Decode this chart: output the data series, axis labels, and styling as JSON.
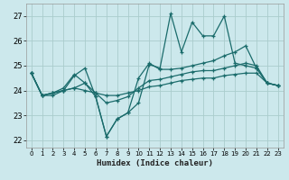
{
  "title": "",
  "xlabel": "Humidex (Indice chaleur)",
  "bg_color": "#cce8ec",
  "grid_color": "#aacccc",
  "line_color": "#1a6b6b",
  "xlim": [
    -0.5,
    23.5
  ],
  "ylim": [
    21.7,
    27.5
  ],
  "yticks": [
    22,
    23,
    24,
    25,
    26,
    27
  ],
  "xticks": [
    0,
    1,
    2,
    3,
    4,
    5,
    6,
    7,
    8,
    9,
    10,
    11,
    12,
    13,
    14,
    15,
    16,
    17,
    18,
    19,
    20,
    21,
    22,
    23
  ],
  "line1_y": [
    24.7,
    23.8,
    23.8,
    24.0,
    24.6,
    24.9,
    23.75,
    22.15,
    22.85,
    23.1,
    23.5,
    25.05,
    24.9,
    27.1,
    25.55,
    26.75,
    26.2,
    26.2,
    27.0,
    25.1,
    25.0,
    24.9,
    24.3,
    24.2
  ],
  "line2_y": [
    24.7,
    23.8,
    23.9,
    24.1,
    24.65,
    24.3,
    23.75,
    22.15,
    22.85,
    23.1,
    24.5,
    25.1,
    24.85,
    24.85,
    24.9,
    25.0,
    25.1,
    25.2,
    25.4,
    25.55,
    25.8,
    24.9,
    24.3,
    24.2
  ],
  "line3_y": [
    24.7,
    23.8,
    23.9,
    24.0,
    24.1,
    24.0,
    23.9,
    23.8,
    23.8,
    23.9,
    24.0,
    24.15,
    24.2,
    24.3,
    24.4,
    24.45,
    24.5,
    24.5,
    24.6,
    24.65,
    24.7,
    24.7,
    24.3,
    24.2
  ],
  "line4_y": [
    24.7,
    23.8,
    23.9,
    24.0,
    24.1,
    24.3,
    23.9,
    23.5,
    23.6,
    23.75,
    24.1,
    24.4,
    24.45,
    24.55,
    24.65,
    24.75,
    24.8,
    24.8,
    24.9,
    25.0,
    25.1,
    25.0,
    24.3,
    24.2
  ]
}
